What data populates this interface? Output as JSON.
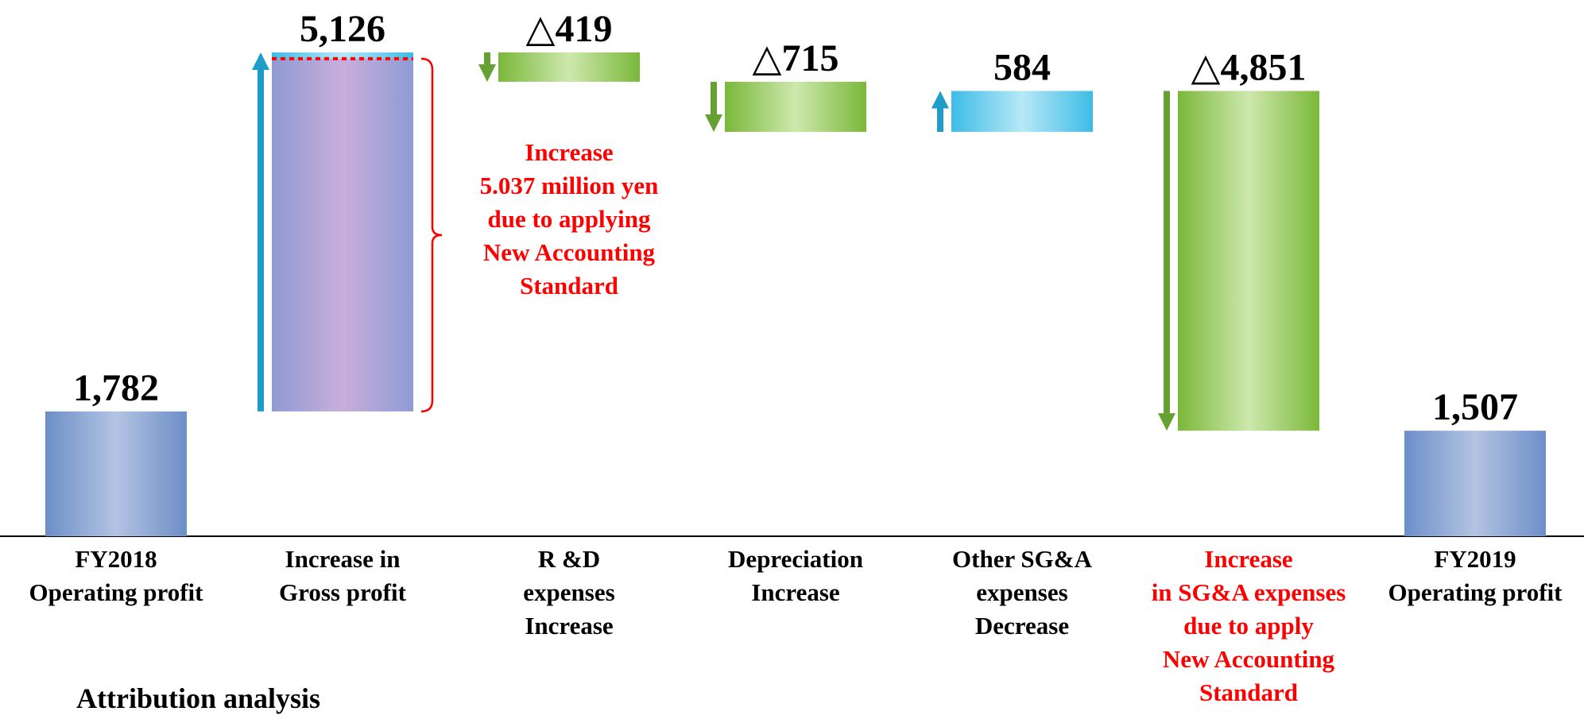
{
  "chart_data": {
    "type": "waterfall",
    "title": "",
    "unit": "",
    "ylim": [
      0,
      7000
    ],
    "grid": false,
    "steps": [
      {
        "kind": "total",
        "category_lines": [
          "FY2018",
          "Operating profit"
        ],
        "value": 1782,
        "label": "1,782",
        "color": "blue-gray",
        "category_color": "#000000"
      },
      {
        "kind": "increase",
        "category_lines": [
          "Increase in",
          "Gross profit"
        ],
        "value": 5126,
        "label": "5,126",
        "color": "purple",
        "category_color": "#000000"
      },
      {
        "kind": "decrease",
        "category_lines": [
          "R &D",
          "expenses",
          "Increase"
        ],
        "value": -419,
        "label": "△419",
        "color": "green",
        "category_color": "#000000"
      },
      {
        "kind": "decrease",
        "category_lines": [
          "Depreciation",
          "Increase"
        ],
        "value": -715,
        "label": "△715",
        "color": "green",
        "category_color": "#000000"
      },
      {
        "kind": "increase",
        "category_lines": [
          "Other SG&A",
          "expenses",
          "Decrease"
        ],
        "value": 584,
        "label": "584",
        "color": "cyan",
        "category_color": "#000000"
      },
      {
        "kind": "decrease",
        "category_lines": [
          "Increase",
          "in SG&A expenses",
          "due to apply",
          "New Accounting",
          "Standard"
        ],
        "value": -4851,
        "label": "△4,851",
        "color": "green",
        "category_color": "#ff0000"
      },
      {
        "kind": "total",
        "category_lines": [
          "FY2019",
          "Operating profit"
        ],
        "value": 1507,
        "label": "1,507",
        "color": "blue-gray",
        "category_color": "#000000"
      }
    ],
    "annotations": [
      {
        "target_step": 1,
        "value": 5037,
        "lines": [
          "Increase",
          "5.037 million yen",
          "due to applying",
          "New Accounting",
          "Standard"
        ],
        "color": "#ff0000"
      }
    ]
  },
  "footer": {
    "title": "Attribution analysis"
  },
  "colors": {
    "blue_gray": "#7e9fd0",
    "purple": "#c3acd9",
    "green": "#8dc24b",
    "cyan": "#40bfe6",
    "arrow_green": "#67a032",
    "arrow_blue": "#1f9cc9",
    "annotation_red": "#ff0000"
  }
}
